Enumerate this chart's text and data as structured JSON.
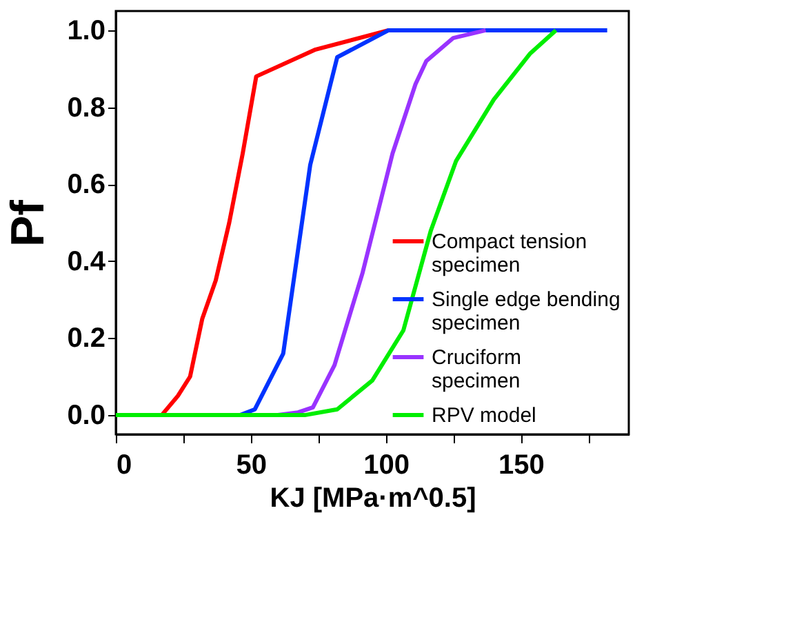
{
  "chart_data": {
    "type": "line",
    "xlabel": "KJ [MPa·m^0.5]",
    "ylabel": "Pf",
    "xlim": [
      0,
      190
    ],
    "xticks": [
      0,
      {
        "value": 25,
        "label": null
      },
      50,
      {
        "value": 75,
        "label": null
      },
      100,
      {
        "value": 125,
        "label": null
      },
      150,
      {
        "value": 175,
        "label": null
      }
    ],
    "ylim": [
      -0.05,
      1.05
    ],
    "yticks": [
      {
        "value": 0,
        "label": "0.0"
      },
      0.2,
      0.4,
      0.6,
      0.8,
      {
        "value": 1,
        "label": "1.0"
      }
    ],
    "grid": false,
    "legend": "bottom right",
    "marker": "none",
    "line_style": "solid",
    "series": [
      {
        "name": "Compact tension specimen",
        "color": "#ff0000",
        "x": [
          0,
          17,
          23,
          27.5,
          32,
          37,
          42,
          47,
          52,
          74,
          101
        ],
        "values": [
          0,
          0,
          0.05,
          0.1,
          0.25,
          0.35,
          0.5,
          0.68,
          0.88,
          0.95,
          1.0
        ]
      },
      {
        "name": "Single edge bending specimen",
        "color": "#0033ff",
        "x": [
          0,
          46,
          51.5,
          62,
          72,
          82,
          101,
          182
        ],
        "values": [
          0,
          0,
          0.015,
          0.16,
          0.65,
          0.93,
          1.0,
          1.0
        ]
      },
      {
        "name": "Cruciform specimen",
        "color": "#9933ff",
        "x": [
          0,
          60,
          67.5,
          73,
          81,
          91.4,
          102.5,
          111,
          115,
          125,
          137
        ],
        "values": [
          0,
          0,
          0.007,
          0.02,
          0.13,
          0.37,
          0.68,
          0.86,
          0.92,
          0.98,
          1.0
        ]
      },
      {
        "name": "RPV model",
        "color": "#00ee00",
        "x": [
          0,
          70,
          82,
          95,
          106.5,
          116.7,
          126,
          140,
          153.5,
          163
        ],
        "values": [
          0,
          0,
          0.015,
          0.09,
          0.22,
          0.48,
          0.66,
          0.82,
          0.94,
          1.0
        ]
      }
    ]
  }
}
